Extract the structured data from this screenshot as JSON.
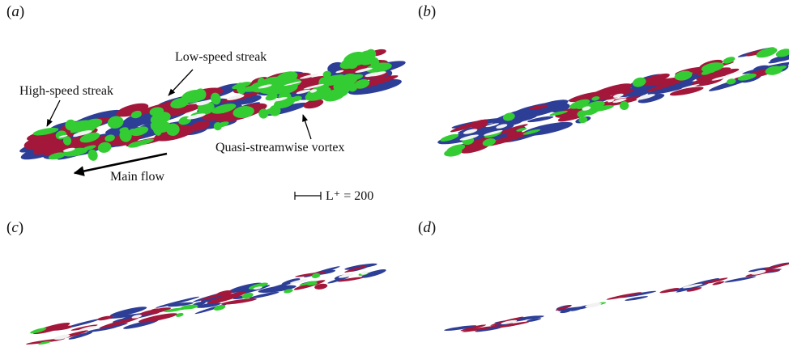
{
  "panels": [
    {
      "id": "a",
      "label": "a"
    },
    {
      "id": "b",
      "label": "b"
    },
    {
      "id": "c",
      "label": "c"
    },
    {
      "id": "d",
      "label": "d"
    }
  ],
  "annotations": {
    "low_speed_streak": "Low-speed streak",
    "high_speed_streak": "High-speed streak",
    "quasi_streamwise_vortex": "Quasi-streamwise vortex",
    "main_flow": "Main flow",
    "scale_bar": "L⁺ = 200"
  },
  "colors": {
    "low_speed": "#2d3e97",
    "high_speed": "#a3173a",
    "vortex": "#33cc33",
    "background": "#ffffff"
  }
}
